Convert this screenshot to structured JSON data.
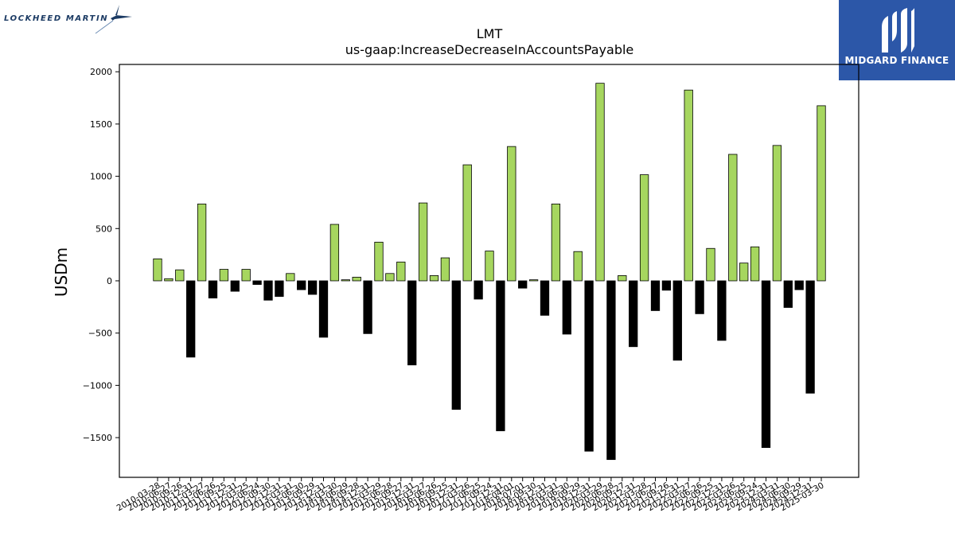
{
  "logos": {
    "left": "LOCKHEED MARTIN",
    "right": "MIDGARD FINANCE"
  },
  "chart_data": {
    "type": "bar",
    "title": "LMT",
    "subtitle": "us-gaap:IncreaseDecreaseInAccountsPayable",
    "ylabel": "USDm",
    "xlabel": "",
    "ylim": [
      -1880,
      2070
    ],
    "yticks": [
      -1500,
      -1000,
      -500,
      0,
      500,
      1000,
      1500,
      2000
    ],
    "grid": false,
    "legend": "none",
    "colors": {
      "positive": "#a6d65f",
      "negative": "#000000",
      "edge": "#000000"
    },
    "categories": [
      "2010-03-28",
      "2010-06-27",
      "2010-09-26",
      "2010-12-31",
      "2011-03-27",
      "2011-06-26",
      "2011-09-25",
      "2011-12-31",
      "2012-03-25",
      "2012-06-24",
      "2012-09-30",
      "2012-12-31",
      "2013-03-31",
      "2013-06-30",
      "2013-09-29",
      "2013-12-31",
      "2014-03-30",
      "2014-06-29",
      "2014-09-28",
      "2014-12-31",
      "2015-03-29",
      "2015-06-28",
      "2015-09-27",
      "2015-12-31",
      "2016-03-27",
      "2016-06-26",
      "2016-09-25",
      "2016-12-31",
      "2017-03-26",
      "2017-06-25",
      "2017-09-24",
      "2017-12-31",
      "2018-04-01",
      "2018-07-01",
      "2018-09-30",
      "2018-12-31",
      "2019-03-31",
      "2019-06-30",
      "2019-09-29",
      "2019-12-31",
      "2020-03-29",
      "2020-06-28",
      "2020-09-27",
      "2020-12-31",
      "2021-03-28",
      "2021-06-27",
      "2021-09-26",
      "2021-12-31",
      "2022-03-27",
      "2022-06-26",
      "2022-09-25",
      "2022-12-31",
      "2023-03-26",
      "2023-06-25",
      "2023-09-24",
      "2023-12-31",
      "2024-03-31",
      "2024-06-30",
      "2024-09-29",
      "2024-12-31",
      "2025-03-30"
    ],
    "values": [
      210,
      20,
      105,
      -730,
      735,
      -165,
      110,
      -100,
      110,
      -35,
      -185,
      -150,
      70,
      -85,
      -130,
      -540,
      540,
      10,
      35,
      -505,
      370,
      70,
      180,
      -805,
      745,
      50,
      220,
      -1230,
      1110,
      -175,
      285,
      -1435,
      1285,
      -70,
      10,
      -330,
      735,
      -510,
      280,
      -1630,
      1890,
      -1710,
      50,
      -630,
      1015,
      -285,
      -90,
      -760,
      1825,
      -315,
      310,
      -570,
      1210,
      170,
      325,
      -1595,
      1295,
      -255,
      -85,
      -1075,
      1675
    ]
  }
}
